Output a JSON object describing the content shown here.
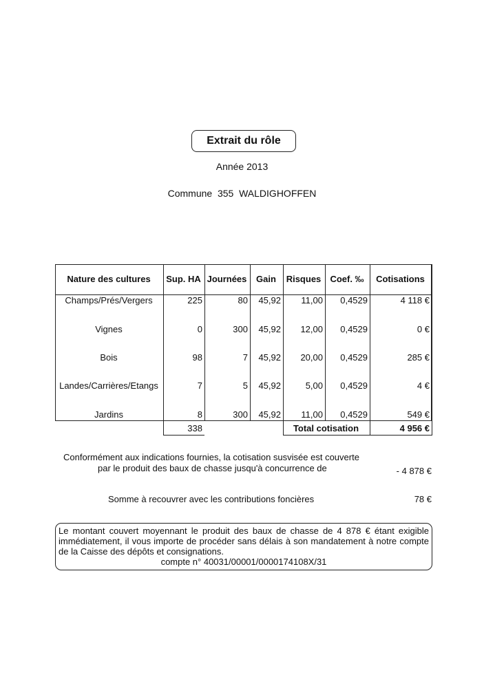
{
  "title": "Extrait du rôle",
  "year_line": "Année 2013",
  "commune_line": "Commune  355  WALDIGHOFFEN",
  "table": {
    "headers": [
      "Nature des cultures",
      "Sup. HA",
      "Journées",
      "Gain",
      "Risques",
      "Coef. ‰",
      "Cotisations"
    ],
    "rows": [
      [
        "Champs/Prés/Vergers",
        "225",
        "80",
        "45,92",
        "11,00",
        "0,4529",
        "4 118 €"
      ],
      [
        "Vignes",
        "0",
        "300",
        "45,92",
        "12,00",
        "0,4529",
        "0 €"
      ],
      [
        "Bois",
        "98",
        "7",
        "45,92",
        "20,00",
        "0,4529",
        "285 €"
      ],
      [
        "Landes/Carrières/Etangs",
        "7",
        "5",
        "45,92",
        "5,00",
        "0,4529",
        "4 €"
      ],
      [
        "Jardins",
        "8",
        "300",
        "45,92",
        "11,00",
        "0,4529",
        "549 €"
      ]
    ],
    "total_sup": "338",
    "total_label": "Total cotisation",
    "total_value": "4 956 €"
  },
  "coverage": {
    "line1": "Conformément aux indications fournies, la cotisation susvisée est couverte",
    "line2": "par le produit des baux de chasse jusqu'à concurrence de",
    "amount": "- 4 878 €"
  },
  "recover": {
    "label": "Somme à recouvrer avec les contributions foncières",
    "amount": "78 €"
  },
  "note": {
    "text": "Le montant couvert moyennant le produit des baux de chasse de 4 878 € étant exigible immédiatement, il vous importe de procéder sans délais à son mandatement à notre compte de la Caisse des dépôts et consignations.",
    "account": "compte n° 40031/00001/0000174108X/31"
  }
}
